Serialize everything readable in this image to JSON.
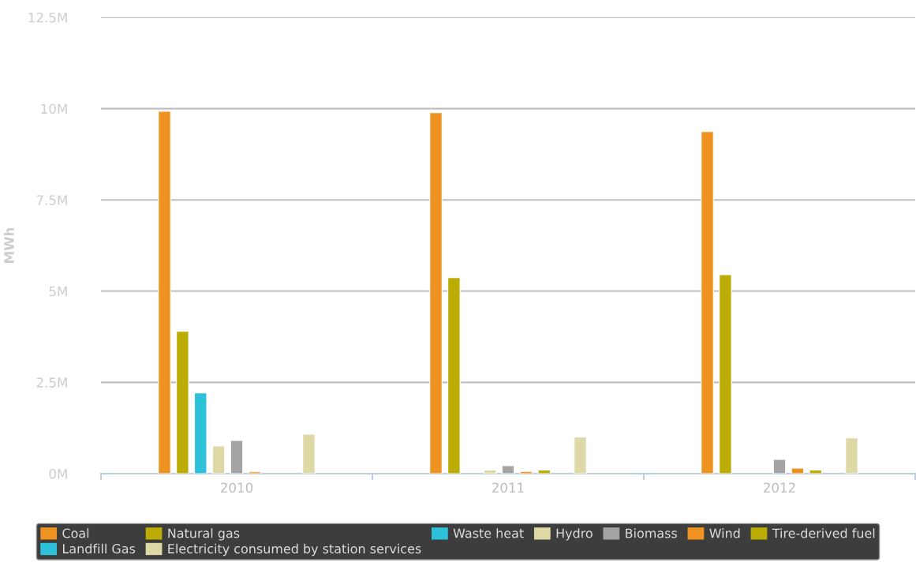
{
  "chart_data": {
    "type": "bar",
    "categories": [
      "2010",
      "2011",
      "2012"
    ],
    "ylabel": "MWh",
    "ylim": [
      0,
      12.5
    ],
    "yticks": [
      {
        "value": 0,
        "label": "0M"
      },
      {
        "value": 2.5,
        "label": "2.5M"
      },
      {
        "value": 5,
        "label": "5M"
      },
      {
        "value": 7.5,
        "label": "7.5M"
      },
      {
        "value": 10,
        "label": "10M"
      },
      {
        "value": 12.5,
        "label": "12.5M"
      }
    ],
    "grid": "y",
    "legend": "bottom",
    "series": [
      {
        "name": "Coal",
        "color": "#ee9222",
        "values": [
          9.93,
          9.89,
          9.37
        ]
      },
      {
        "name": "Natural gas",
        "color": "#bcad06",
        "values": [
          3.9,
          5.37,
          5.45
        ]
      },
      {
        "name": "Waste heat",
        "color": "#2ec1da",
        "values": [
          2.21,
          null,
          null
        ]
      },
      {
        "name": "Hydro",
        "color": "#ddd8a6",
        "values": [
          0.76,
          0.1,
          null
        ]
      },
      {
        "name": "Biomass",
        "color": "#a4a4a5",
        "values": [
          0.91,
          0.22,
          0.39
        ]
      },
      {
        "name": "Wind",
        "color": "#ee9222",
        "values": [
          0.05,
          0.06,
          0.15
        ]
      },
      {
        "name": "Tire-derived fuel",
        "color": "#bcad06",
        "values": [
          null,
          0.1,
          0.1
        ]
      },
      {
        "name": "Landfill Gas",
        "color": "#2ec1da",
        "values": [
          null,
          null,
          null
        ]
      },
      {
        "name": "Electricity consumed by station services",
        "color": "#ddd8a6",
        "values": [
          1.08,
          1.0,
          0.98
        ]
      }
    ]
  }
}
